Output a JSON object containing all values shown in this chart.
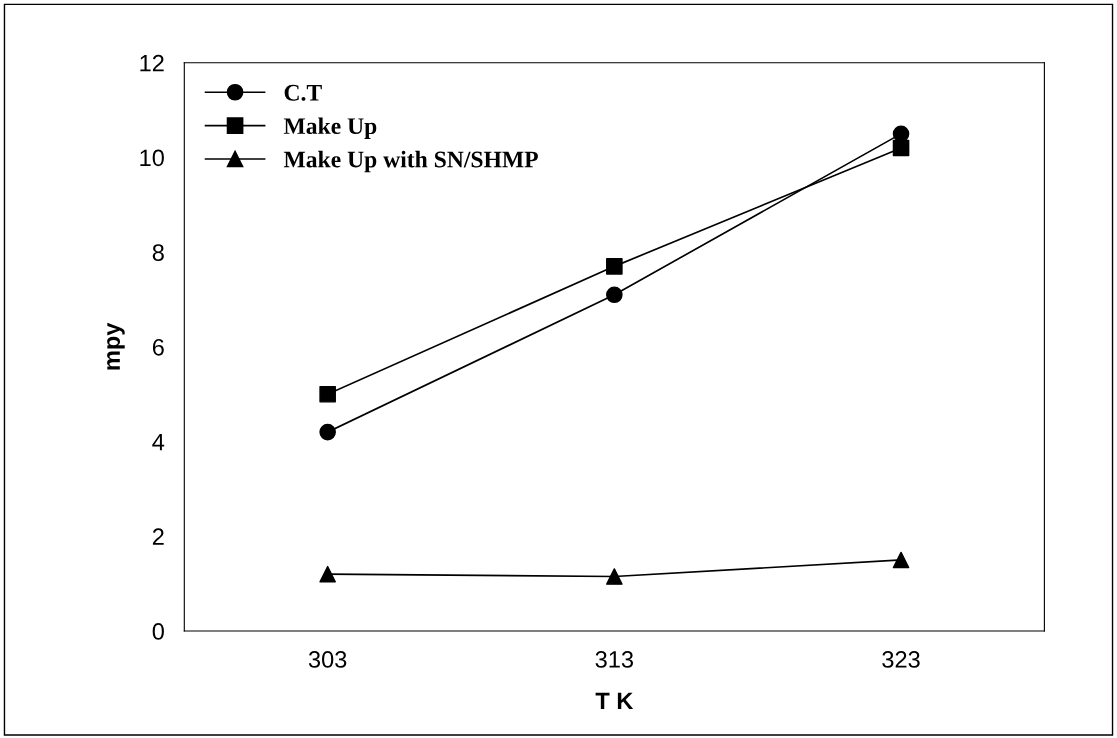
{
  "chart_data": {
    "type": "line",
    "xlabel": "T K",
    "ylabel": "mpy",
    "x": [
      303,
      313,
      323
    ],
    "series": [
      {
        "name": "C.T",
        "color": "#000000",
        "marker": "circle",
        "values": [
          4.2,
          7.1,
          10.5
        ]
      },
      {
        "name": "Make Up",
        "color": "#000000",
        "marker": "square",
        "values": [
          5.0,
          7.7,
          10.2
        ]
      },
      {
        "name": "Make Up with SN/SHMP",
        "color": "#000000",
        "marker": "triangle",
        "values": [
          1.2,
          1.15,
          1.5
        ]
      }
    ],
    "xlim": [
      298,
      328
    ],
    "xticks": [
      303,
      313,
      323
    ],
    "ylim": [
      0,
      12
    ],
    "yticks": [
      0,
      2,
      4,
      6,
      8,
      10,
      12
    ],
    "grid": false,
    "legend": "top left",
    "line_style": "solid"
  }
}
